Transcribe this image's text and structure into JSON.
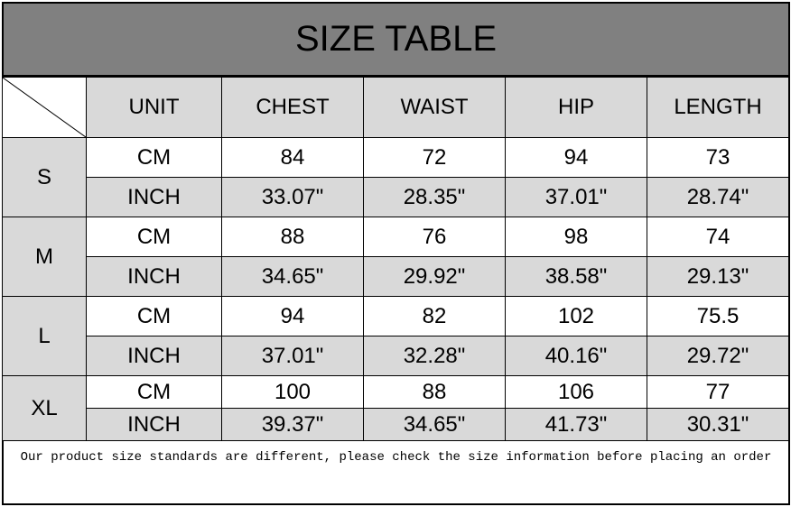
{
  "title": "SIZE TABLE",
  "headers": [
    "UNIT",
    "CHEST",
    "WAIST",
    "HIP",
    "LENGTH"
  ],
  "rows": [
    {
      "size": "S",
      "cm": {
        "unit": "CM",
        "values": [
          "84",
          "72",
          "94",
          "73"
        ]
      },
      "inch": {
        "unit": "INCH",
        "values": [
          "33.07\"",
          "28.35\"",
          "37.01\"",
          "28.74\""
        ]
      }
    },
    {
      "size": "M",
      "cm": {
        "unit": "CM",
        "values": [
          "88",
          "76",
          "98",
          "74"
        ]
      },
      "inch": {
        "unit": "INCH",
        "values": [
          "34.65\"",
          "29.92\"",
          "38.58\"",
          "29.13\""
        ]
      }
    },
    {
      "size": "L",
      "cm": {
        "unit": "CM",
        "values": [
          "94",
          "82",
          "102",
          "75.5"
        ]
      },
      "inch": {
        "unit": "INCH",
        "values": [
          "37.01\"",
          "32.28\"",
          "40.16\"",
          "29.72\""
        ]
      }
    },
    {
      "size": "XL",
      "cm": {
        "unit": "CM",
        "values": [
          "100",
          "88",
          "106",
          "77"
        ]
      },
      "inch": {
        "unit": "INCH",
        "values": [
          "39.37\"",
          "34.65\"",
          "41.73\"",
          "30.31\""
        ]
      }
    }
  ],
  "footer": "Our product size standards are different, please check the size information before placing an order",
  "colors": {
    "title_bg": "#808080",
    "cell_gray": "#d9d9d9"
  }
}
